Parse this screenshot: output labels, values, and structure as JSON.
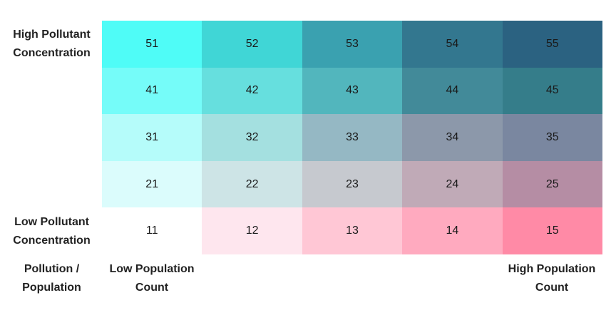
{
  "chart_data": {
    "type": "heatmap",
    "rows": [
      {
        "values": [
          51,
          52,
          53,
          54,
          55
        ],
        "colors": [
          "#4ffcf7",
          "#40d6d6",
          "#3aa1b0",
          "#33778f",
          "#2b6281"
        ]
      },
      {
        "values": [
          41,
          42,
          43,
          44,
          45
        ],
        "colors": [
          "#75fcf9",
          "#66dfde",
          "#52b6bd",
          "#428a99",
          "#357d8a"
        ]
      },
      {
        "values": [
          31,
          32,
          33,
          34,
          35
        ],
        "colors": [
          "#b5fcfa",
          "#a4e0e0",
          "#95b8c4",
          "#8c98aa",
          "#7a87a0"
        ]
      },
      {
        "values": [
          21,
          22,
          23,
          24,
          25
        ],
        "colors": [
          "#dbfcfc",
          "#cde4e6",
          "#c6c9cf",
          "#c0aab7",
          "#b58da4"
        ]
      },
      {
        "values": [
          11,
          12,
          13,
          14,
          15
        ],
        "colors": [
          "#ffffff",
          "#fee6ee",
          "#ffc7d5",
          "#ffaabf",
          "#ff8aa6"
        ]
      }
    ],
    "y_labels": {
      "top": [
        "High Pollutant",
        "Concentration"
      ],
      "bottom": [
        "Low Pollutant",
        "Concentration"
      ]
    },
    "x_labels": {
      "left": [
        "Low Population",
        "Count"
      ],
      "right": [
        "High Population",
        "Count"
      ]
    },
    "corner_label": [
      "Pollution /",
      "Population"
    ]
  }
}
